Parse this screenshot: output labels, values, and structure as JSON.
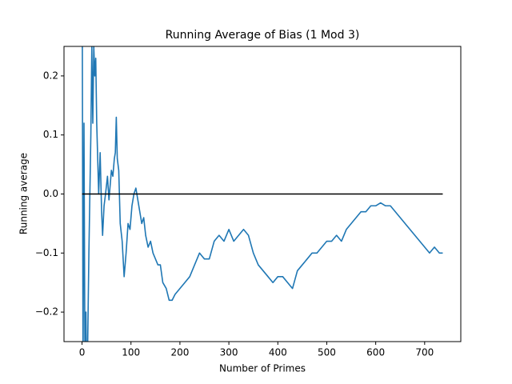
{
  "chart_data": {
    "type": "line",
    "title": "Running Average of Bias (1 Mod 3)",
    "x_label": "Number of Primes",
    "y_label": "Running average",
    "xlim": [
      -36.85,
      773.85
    ],
    "ylim": [
      -0.25,
      0.25
    ],
    "xticks": [
      0,
      100,
      200,
      300,
      400,
      500,
      600,
      700
    ],
    "yticks": [
      {
        "value": -0.2,
        "label": "−0.2"
      },
      {
        "value": -0.1,
        "label": "−0.1"
      },
      {
        "value": 0,
        "label": "0.0"
      },
      0.1,
      0.2
    ],
    "grid": false,
    "series": [
      {
        "color": "#1f77b4",
        "x": [
          0,
          2,
          4,
          6,
          8,
          10,
          14,
          18,
          20,
          22,
          24,
          26,
          28,
          30,
          34,
          37,
          40,
          42,
          45,
          48,
          52,
          55,
          60,
          63,
          66,
          68,
          70,
          72,
          75,
          78,
          82,
          86,
          90,
          94,
          98,
          102,
          106,
          110,
          114,
          118,
          122,
          126,
          130,
          135,
          140,
          145,
          150,
          155,
          160,
          165,
          172,
          178,
          184,
          190,
          200,
          210,
          220,
          230,
          240,
          250,
          260,
          270,
          280,
          290,
          300,
          310,
          320,
          330,
          340,
          350,
          360,
          370,
          380,
          390,
          400,
          410,
          420,
          430,
          440,
          450,
          460,
          470,
          480,
          490,
          500,
          510,
          520,
          530,
          540,
          550,
          560,
          570,
          580,
          590,
          600,
          610,
          620,
          630,
          640,
          650,
          660,
          670,
          680,
          690,
          700,
          710,
          720,
          730,
          737
        ],
        "values": [
          0.5,
          -0.3,
          0.12,
          -0.3,
          -0.2,
          -0.35,
          -0.1,
          0.1,
          0.25,
          0.12,
          0.25,
          0.2,
          0.23,
          0.12,
          0.0,
          0.07,
          -0.03,
          -0.07,
          -0.02,
          0.0,
          0.03,
          -0.01,
          0.04,
          0.03,
          0.06,
          0.07,
          0.13,
          0.06,
          0.04,
          -0.05,
          -0.08,
          -0.14,
          -0.1,
          -0.05,
          -0.06,
          -0.02,
          0.0,
          0.01,
          -0.01,
          -0.03,
          -0.05,
          -0.04,
          -0.07,
          -0.09,
          -0.08,
          -0.1,
          -0.11,
          -0.12,
          -0.12,
          -0.15,
          -0.16,
          -0.18,
          -0.18,
          -0.17,
          -0.16,
          -0.15,
          -0.14,
          -0.12,
          -0.1,
          -0.11,
          -0.11,
          -0.08,
          -0.07,
          -0.08,
          -0.06,
          -0.08,
          -0.07,
          -0.06,
          -0.07,
          -0.1,
          -0.12,
          -0.13,
          -0.14,
          -0.15,
          -0.14,
          -0.14,
          -0.15,
          -0.16,
          -0.13,
          -0.12,
          -0.11,
          -0.1,
          -0.1,
          -0.09,
          -0.08,
          -0.08,
          -0.07,
          -0.08,
          -0.06,
          -0.05,
          -0.04,
          -0.03,
          -0.03,
          -0.02,
          -0.02,
          -0.015,
          -0.02,
          -0.02,
          -0.03,
          -0.04,
          -0.05,
          -0.06,
          -0.07,
          -0.08,
          -0.09,
          -0.1,
          -0.09,
          -0.1,
          -0.1
        ]
      },
      {
        "color": "#000000",
        "x": [
          0,
          737
        ],
        "values": [
          0,
          0
        ]
      }
    ]
  }
}
